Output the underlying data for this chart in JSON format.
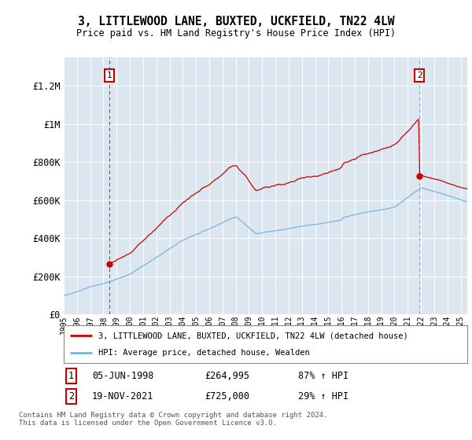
{
  "title": "3, LITTLEWOOD LANE, BUXTED, UCKFIELD, TN22 4LW",
  "subtitle": "Price paid vs. HM Land Registry's House Price Index (HPI)",
  "background_color": "#dce6f1",
  "sale1_date": "05-JUN-1998",
  "sale1_price": 264995,
  "sale1_label": "87% ↑ HPI",
  "sale2_date": "19-NOV-2021",
  "sale2_price": 725000,
  "sale2_label": "29% ↑ HPI",
  "hpi_color": "#7ab4d8",
  "price_color": "#cc0000",
  "legend_line1": "3, LITTLEWOOD LANE, BUXTED, UCKFIELD, TN22 4LW (detached house)",
  "legend_line2": "HPI: Average price, detached house, Wealden",
  "footer": "Contains HM Land Registry data © Crown copyright and database right 2024.\nThis data is licensed under the Open Government Licence v3.0.",
  "ylim_max": 1350000,
  "yticks": [
    0,
    200000,
    400000,
    600000,
    800000,
    1000000,
    1200000
  ],
  "ytick_labels": [
    "£0",
    "£200K",
    "£400K",
    "£600K",
    "£800K",
    "£1M",
    "£1.2M"
  ],
  "sale1_year": 1998.428,
  "sale2_year": 2021.886
}
